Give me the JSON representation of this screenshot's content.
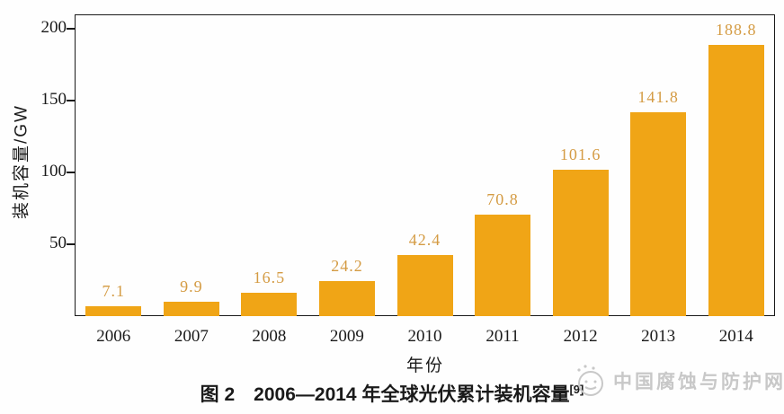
{
  "chart_data": {
    "type": "bar",
    "title": "图 2　2006—2014 年全球光伏累计装机容量",
    "title_ref": "[9]",
    "xlabel": "年份",
    "ylabel": "装机容量/GW",
    "categories": [
      "2006",
      "2007",
      "2008",
      "2009",
      "2010",
      "2011",
      "2012",
      "2013",
      "2014"
    ],
    "values": [
      7.1,
      9.9,
      16.5,
      24.2,
      42.4,
      70.8,
      101.6,
      141.8,
      188.8
    ],
    "yticks": [
      50,
      100,
      150,
      200
    ],
    "ylim": [
      0,
      210
    ],
    "grid": false,
    "legend": null,
    "bar_color": "#F0A516",
    "value_label_color": "#D49B43",
    "axis_color": "#1a1a1a"
  },
  "watermark": {
    "text": "中国腐蚀与防护网",
    "logo": "sketch-globe-icon",
    "color": "#c8c8c8"
  }
}
